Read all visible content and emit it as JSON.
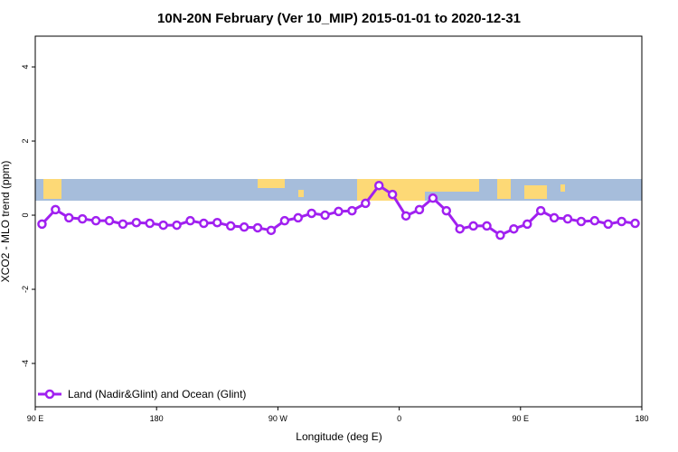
{
  "chart_data": {
    "type": "line",
    "title": "10N-20N February (Ver 10_MIP)   2015-01-01 to 2020-12-31",
    "x_label": "Longitude (deg E)",
    "y_label": "XCO2 - MLO trend (ppm)",
    "xlim": [
      90,
      540
    ],
    "xticks": [
      {
        "value": 90,
        "label": "90 E"
      },
      180,
      {
        "value": 270,
        "label": "90 W"
      },
      {
        "value": 360,
        "label": "0"
      },
      {
        "value": 450,
        "label": "90 E"
      },
      {
        "value": 540,
        "label": "180"
      }
    ],
    "ylim": [
      -5.17,
      4.83
    ],
    "yticks": [
      -4,
      -2,
      0,
      2,
      4
    ],
    "legend_position": "bottom-left",
    "series": [
      {
        "name": "Land (Nadir&Glint) and Ocean (Glint)",
        "color": "#a020f0",
        "x": [
          95,
          105,
          115,
          125,
          135,
          145,
          155,
          165,
          175,
          185,
          195,
          205,
          215,
          225,
          235,
          245,
          255,
          265,
          275,
          285,
          295,
          305,
          315,
          325,
          335,
          345,
          355,
          365,
          375,
          385,
          395,
          405,
          415,
          425,
          435,
          445,
          455,
          465,
          475,
          485,
          495,
          505,
          515,
          525,
          535
        ],
        "values": [
          -0.24,
          0.15,
          -0.07,
          -0.1,
          -0.15,
          -0.15,
          -0.24,
          -0.2,
          -0.22,
          -0.27,
          -0.27,
          -0.15,
          -0.22,
          -0.2,
          -0.29,
          -0.32,
          -0.34,
          -0.41,
          -0.15,
          -0.07,
          0.05,
          0,
          0.1,
          0.12,
          0.32,
          0.8,
          0.56,
          -0.02,
          0.15,
          0.46,
          0.12,
          -0.37,
          -0.29,
          -0.29,
          -0.54,
          -0.37,
          -0.24,
          0.12,
          -0.07,
          -0.1,
          -0.17,
          -0.15,
          -0.24,
          -0.17,
          -0.22
        ]
      }
    ]
  }
}
